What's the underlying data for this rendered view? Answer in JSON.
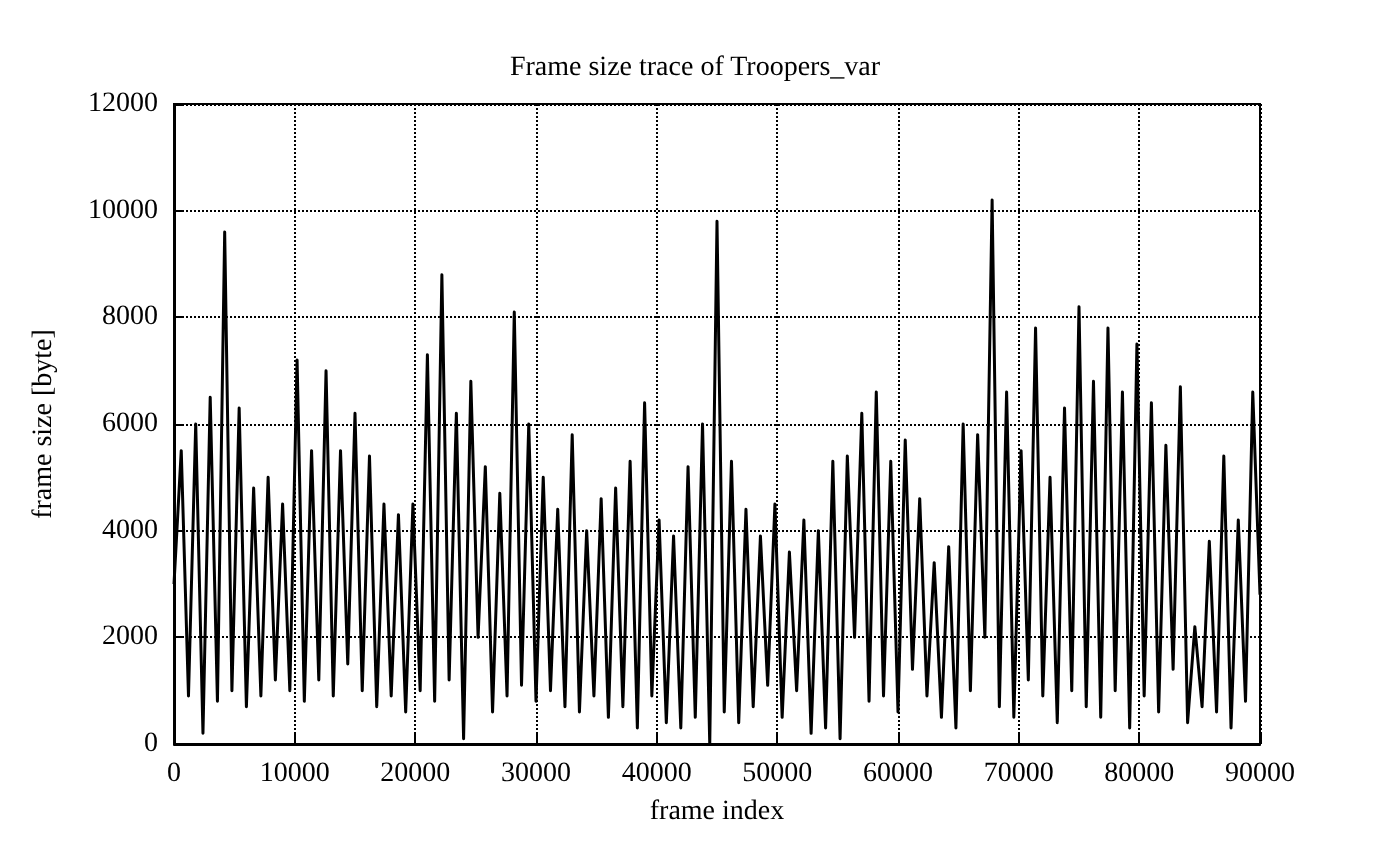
{
  "chart_data": {
    "type": "line",
    "title": "Frame size trace of Troopers_var",
    "xlabel": "frame index",
    "ylabel": "frame size [byte]",
    "x": [
      0,
      600,
      1200,
      1800,
      2400,
      3000,
      3600,
      4200,
      4800,
      5400,
      6000,
      6600,
      7200,
      7800,
      8400,
      9000,
      9600,
      10200,
      10800,
      11400,
      12000,
      12600,
      13200,
      13800,
      14400,
      15000,
      15600,
      16200,
      16800,
      17400,
      18000,
      18600,
      19200,
      19800,
      20400,
      21000,
      21600,
      22200,
      22800,
      23400,
      24000,
      24600,
      25200,
      25800,
      26400,
      27000,
      27600,
      28200,
      28800,
      29400,
      30000,
      30600,
      31200,
      31800,
      32400,
      33000,
      33600,
      34200,
      34800,
      35400,
      36000,
      36600,
      37200,
      37800,
      38400,
      39000,
      39600,
      40200,
      40800,
      41400,
      42000,
      42600,
      43200,
      43800,
      44400,
      45000,
      45600,
      46200,
      46800,
      47400,
      48000,
      48600,
      49200,
      49800,
      50400,
      51000,
      51600,
      52200,
      52800,
      53400,
      54000,
      54600,
      55200,
      55800,
      56400,
      57000,
      57600,
      58200,
      58800,
      59400,
      60000,
      60600,
      61200,
      61800,
      62400,
      63000,
      63600,
      64200,
      64800,
      65400,
      66000,
      66600,
      67200,
      67800,
      68400,
      69000,
      69600,
      70200,
      70800,
      71400,
      72000,
      72600,
      73200,
      73800,
      74400,
      75000,
      75600,
      76200,
      76800,
      77400,
      78000,
      78600,
      79200,
      79800,
      80400,
      81000,
      81600,
      82200,
      82800,
      83400,
      84000,
      84600,
      85200,
      85800,
      86400,
      87000,
      87600,
      88200,
      88800,
      89400,
      90000
    ],
    "series": [
      {
        "color": "#000000",
        "values": [
          3000,
          5500,
          900,
          6000,
          200,
          6500,
          800,
          9600,
          1000,
          6300,
          700,
          4800,
          900,
          5000,
          1200,
          4500,
          1000,
          7200,
          800,
          5500,
          1200,
          7000,
          900,
          5500,
          1500,
          6200,
          1000,
          5400,
          700,
          4500,
          900,
          4300,
          600,
          4500,
          1000,
          7300,
          800,
          8800,
          1200,
          6200,
          100,
          6800,
          2000,
          5200,
          600,
          4700,
          900,
          8100,
          1100,
          6000,
          800,
          5000,
          1000,
          4400,
          700,
          5800,
          600,
          4000,
          900,
          4600,
          500,
          4800,
          700,
          5300,
          300,
          6400,
          900,
          4200,
          400,
          3900,
          300,
          5200,
          500,
          6000,
          0,
          9800,
          600,
          5300,
          400,
          4400,
          700,
          3900,
          1100,
          4500,
          500,
          3600,
          1000,
          4200,
          200,
          4000,
          300,
          5300,
          100,
          5400,
          2000,
          6200,
          800,
          6600,
          900,
          5300,
          600,
          5700,
          1400,
          4600,
          900,
          3400,
          500,
          3700,
          300,
          6000,
          1000,
          5800,
          2000,
          10200,
          700,
          6600,
          500,
          5500,
          1200,
          7800,
          900,
          5000,
          400,
          6300,
          1000,
          8200,
          700,
          6800,
          500,
          7800,
          1000,
          6600,
          300,
          7500,
          900,
          6400,
          600,
          5600,
          1400,
          6700,
          400,
          2200,
          700,
          3800,
          600,
          5400,
          300,
          4200,
          800,
          6600,
          2800
        ]
      }
    ],
    "xlim": [
      0,
      90000
    ],
    "xticks": [
      0,
      10000,
      20000,
      30000,
      40000,
      50000,
      60000,
      70000,
      80000,
      90000
    ],
    "ylim": [
      0,
      12000
    ],
    "yticks": [
      0,
      2000,
      4000,
      6000,
      8000,
      10000,
      12000
    ],
    "grid": true,
    "marker": "none",
    "line_style": "solid"
  }
}
